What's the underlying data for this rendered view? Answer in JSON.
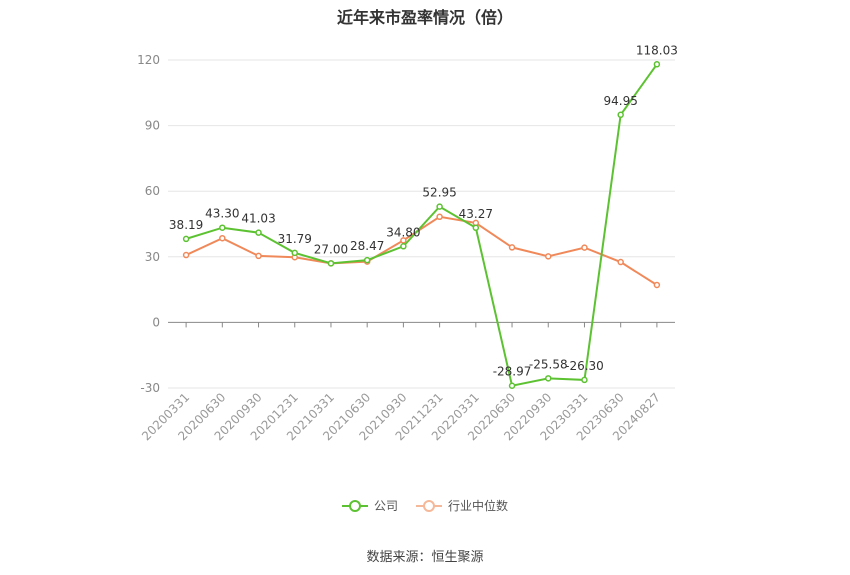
{
  "chart_data": {
    "type": "line",
    "title": "近年来市盈率情况（倍）",
    "categories": [
      "20200331",
      "20200630",
      "20200930",
      "20201231",
      "20210331",
      "20210630",
      "20210930",
      "20211231",
      "20220331",
      "20220630",
      "20220930",
      "20230331",
      "20230630",
      "20240827"
    ],
    "series": [
      {
        "name": "公司",
        "color": "#5dc232",
        "values": [
          38.19,
          43.3,
          41.03,
          31.79,
          27.0,
          28.47,
          34.8,
          52.95,
          43.27,
          -28.97,
          -25.58,
          -26.3,
          94.95,
          118.03
        ],
        "labels": [
          "38.19",
          "43.30",
          "41.03",
          "31.79",
          "27.00",
          "28.47",
          "34.80",
          "52.95",
          "43.27",
          "-28.97",
          "-25.58",
          "-26.30",
          "94.95",
          "118.03"
        ]
      },
      {
        "name": "行业中位数",
        "color": "#f0895a",
        "values": [
          30.8,
          38.5,
          30.4,
          29.8,
          27.0,
          27.8,
          37.5,
          48.3,
          45.5,
          34.3,
          30.2,
          34.2,
          27.6,
          17.1
        ]
      }
    ],
    "yticks": [
      -30,
      0,
      30,
      60,
      90,
      120
    ],
    "ylim": [
      -30,
      120
    ],
    "grid": true,
    "legend": "bottom-center"
  },
  "source": "数据来源：恒生聚源"
}
